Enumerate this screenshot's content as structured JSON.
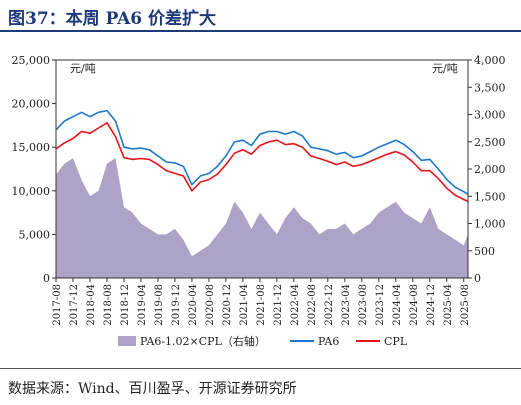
{
  "title": "图37：本周 PA6 价差扩大",
  "source": "数据来源：Wind、百川盈孚、开源证券研究所",
  "colors": {
    "pa6": "#1f77c8",
    "cpl": "#e8141b",
    "spread": "#aca3c7",
    "title": "#1f3a7a"
  },
  "chart_data": {
    "type": "line",
    "left_axis_unit": "元/吨",
    "right_axis_unit": "元/吨",
    "ylim_left": [
      0,
      25000
    ],
    "ylim_right": [
      0,
      4000
    ],
    "left_ticks": [
      "0",
      "5,000",
      "10,000",
      "15,000",
      "20,000",
      "25,000"
    ],
    "right_ticks": [
      "0",
      "500",
      "1,000",
      "1,500",
      "2,000",
      "2,500",
      "3,000",
      "3,500",
      "4,000"
    ],
    "x_ticks": [
      "2017-08",
      "2017-12",
      "2018-04",
      "2018-08",
      "2018-12",
      "2019-04",
      "2019-08",
      "2019-12",
      "2020-04",
      "2020-08",
      "2020-12",
      "2021-04",
      "2021-08",
      "2021-12",
      "2022-04",
      "2022-08",
      "2022-12",
      "2023-04",
      "2023-08",
      "2023-12",
      "2024-04",
      "2024-08",
      "2024-12",
      "2025-04",
      "2025-08"
    ],
    "x": [
      "2017-08",
      "2017-10",
      "2017-12",
      "2018-02",
      "2018-04",
      "2018-06",
      "2018-08",
      "2018-10",
      "2018-12",
      "2019-02",
      "2019-04",
      "2019-06",
      "2019-08",
      "2019-10",
      "2019-12",
      "2020-02",
      "2020-04",
      "2020-06",
      "2020-08",
      "2020-10",
      "2020-12",
      "2021-02",
      "2021-04",
      "2021-06",
      "2021-08",
      "2021-10",
      "2021-12",
      "2022-02",
      "2022-04",
      "2022-06",
      "2022-08",
      "2022-10",
      "2022-12",
      "2023-02",
      "2023-04",
      "2023-06",
      "2023-08",
      "2023-10",
      "2023-12",
      "2024-02",
      "2024-04",
      "2024-06",
      "2024-08",
      "2024-10",
      "2024-12",
      "2025-02",
      "2025-04",
      "2025-06",
      "2025-08",
      "2025-09"
    ],
    "series": [
      {
        "name": "PA6-1.02×CPL（右轴）",
        "type": "area",
        "axis": "right",
        "values": [
          1900,
          2100,
          2200,
          1800,
          1500,
          1600,
          2100,
          2200,
          1300,
          1200,
          1000,
          900,
          800,
          800,
          900,
          700,
          400,
          500,
          600,
          800,
          1000,
          1400,
          1200,
          900,
          1200,
          1000,
          800,
          1100,
          1300,
          1100,
          1000,
          800,
          900,
          900,
          1000,
          800,
          900,
          1000,
          1200,
          1300,
          1400,
          1200,
          1100,
          1000,
          1300,
          900,
          800,
          700,
          600,
          800
        ]
      },
      {
        "name": "PA6",
        "type": "line",
        "axis": "left",
        "values": [
          17000,
          18000,
          18500,
          19000,
          18500,
          19000,
          19200,
          18000,
          15000,
          14800,
          14900,
          14700,
          14000,
          13300,
          13200,
          12800,
          10700,
          11700,
          12000,
          12800,
          14000,
          15600,
          15800,
          15200,
          16500,
          16800,
          16800,
          16500,
          16800,
          16300,
          15000,
          14800,
          14600,
          14200,
          14400,
          13800,
          14000,
          14500,
          15000,
          15400,
          15800,
          15300,
          14500,
          13500,
          13600,
          12500,
          11300,
          10400,
          9900,
          9600
        ]
      },
      {
        "name": "CPL",
        "type": "line",
        "axis": "left",
        "values": [
          14800,
          15500,
          16000,
          16800,
          16600,
          17200,
          17800,
          16200,
          13800,
          13600,
          13700,
          13600,
          13000,
          12300,
          12000,
          11700,
          10000,
          11000,
          11300,
          11900,
          13000,
          14300,
          14700,
          14200,
          15200,
          15600,
          15800,
          15300,
          15400,
          15000,
          14000,
          13700,
          13400,
          13000,
          13300,
          12800,
          13000,
          13400,
          13800,
          14200,
          14500,
          14100,
          13300,
          12300,
          12300,
          11400,
          10300,
          9500,
          9000,
          8800
        ]
      }
    ]
  }
}
